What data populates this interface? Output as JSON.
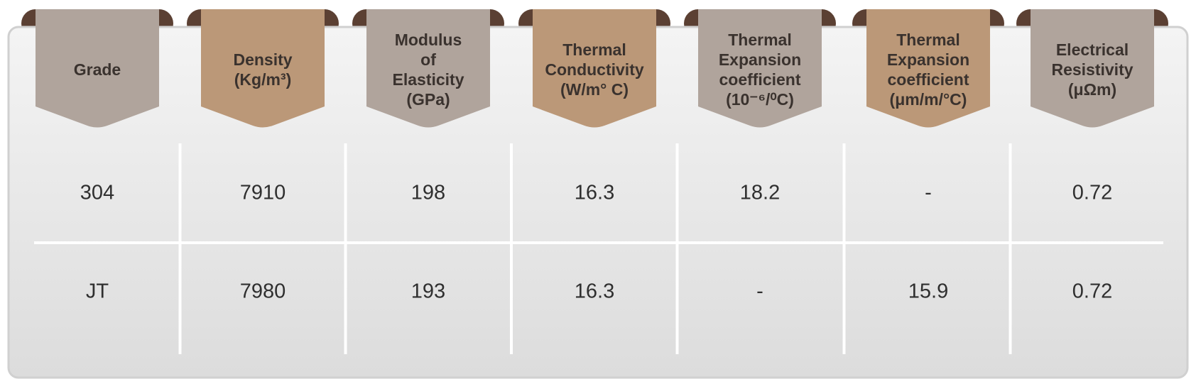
{
  "table": {
    "headers": [
      [
        "Grade"
      ],
      [
        "Density",
        "(Kg/m³)"
      ],
      [
        "Modulus",
        "of",
        "Elasticity",
        "(GPa)"
      ],
      [
        "Thermal",
        "Conductivity",
        "(W/m° C)"
      ],
      [
        "Thermal",
        "Expansion",
        "coefficient",
        "(10⁻⁶/⁰C)"
      ],
      [
        "Thermal",
        "Expansion",
        "coefficient",
        "(μm/m/°C)"
      ],
      [
        "Electrical",
        "Resistivity",
        "(μΩm)"
      ]
    ],
    "rows": [
      [
        "304",
        "7910",
        "198",
        "16.3",
        "18.2",
        "-",
        "0.72"
      ],
      [
        "JT",
        "7980",
        "193",
        "16.3",
        "-",
        "15.9",
        "0.72"
      ]
    ]
  }
}
